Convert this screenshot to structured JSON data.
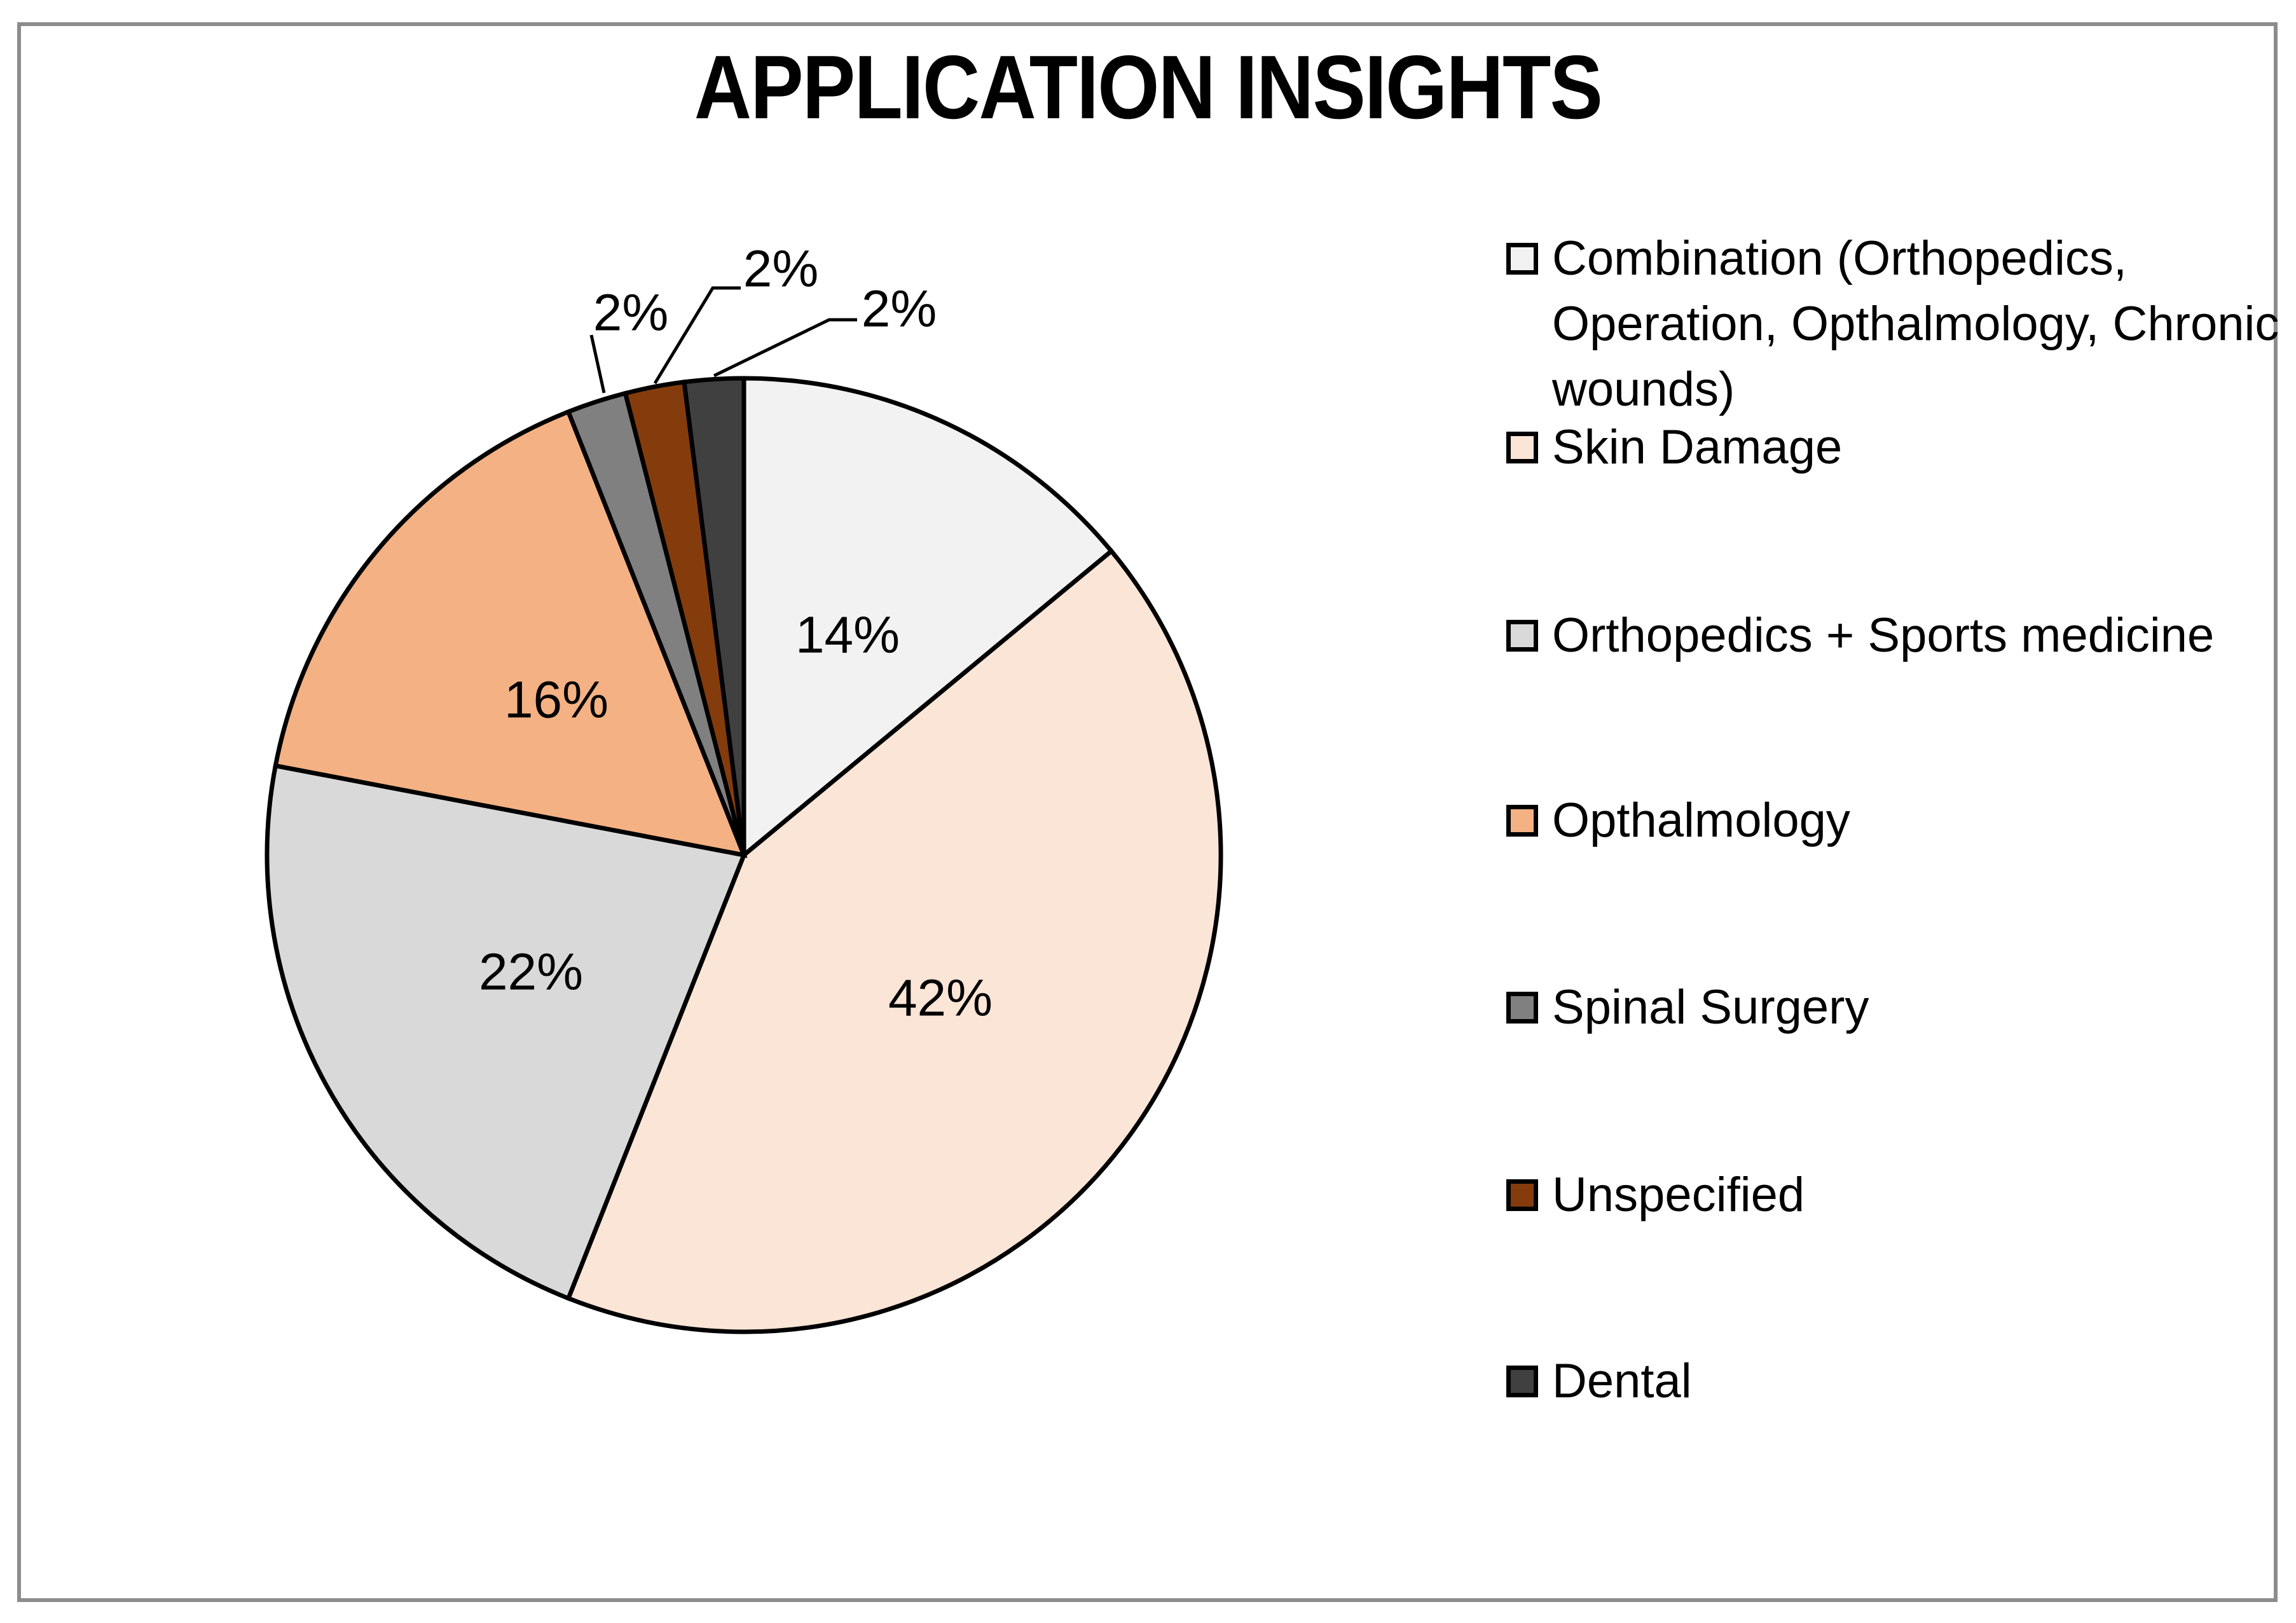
{
  "title": "APPLICATION INSIGHTS",
  "frame_color": "#8C8C8C",
  "chart_data": {
    "type": "pie",
    "title": "APPLICATION INSIGHTS",
    "unit": "percent",
    "direction": "clockwise",
    "start_angle_deg": 0,
    "legend_position": "right",
    "outline_color": "#000000",
    "label_color": "#000000",
    "slices": [
      {
        "label": "Combination (Orthopedics, Operation, Opthalmology, Chronic wounds)",
        "value": 14,
        "pct_label": "14%",
        "color": "#F2F2F2",
        "label_placement": "inside"
      },
      {
        "label": "Skin Damage",
        "value": 42,
        "pct_label": "42%",
        "color": "#FBE5D6",
        "label_placement": "inside"
      },
      {
        "label": "Orthopedics + Sports medicine",
        "value": 22,
        "pct_label": "22%",
        "color": "#D9D9D9",
        "label_placement": "inside"
      },
      {
        "label": "Opthalmology",
        "value": 16,
        "pct_label": "16%",
        "color": "#F4B183",
        "label_placement": "inside"
      },
      {
        "label": "Spinal Surgery",
        "value": 2,
        "pct_label": "2%",
        "color": "#808080",
        "label_placement": "outside"
      },
      {
        "label": "Unspecified",
        "value": 2,
        "pct_label": "2%",
        "color": "#843C0C",
        "label_placement": "outside"
      },
      {
        "label": "Dental",
        "value": 2,
        "pct_label": "2%",
        "color": "#404040",
        "label_placement": "outside"
      }
    ]
  }
}
